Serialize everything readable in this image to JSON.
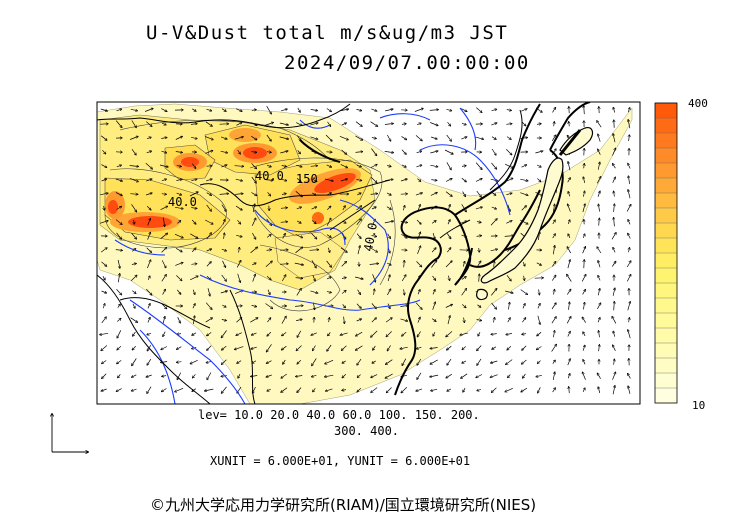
{
  "title": {
    "line1": "U-V&Dust total m/s&ug/m3 JST",
    "line2": "2024/09/07.00:00:00"
  },
  "contour_labels": [
    "40.0",
    "40.0",
    "150",
    "40.0"
  ],
  "levels": {
    "line1": "lev= 10.0 20.0 40.0 60.0 100. 150. 200.",
    "line2": "300. 400."
  },
  "units": "XUNIT = 6.000E+01, YUNIT = 6.000E+01",
  "colorbar": {
    "max_label": "400",
    "min_label": "10",
    "colors": [
      "#ff5a0a",
      "#ff6a14",
      "#ff7a1e",
      "#ff8a28",
      "#ff9a30",
      "#ffaa38",
      "#ffba40",
      "#ffca48",
      "#ffd850",
      "#ffe45a",
      "#ffee64",
      "#fff470",
      "#fff67e",
      "#fff88c",
      "#fffa9a",
      "#fffba8",
      "#fffcb6",
      "#fffdc4",
      "#fffed2",
      "#ffffe0"
    ]
  },
  "colors": {
    "dust_low": "#fff9c0",
    "dust_mid": "#ffe25a",
    "dust_high": "#ff9a30",
    "dust_max": "#ff4a10",
    "river": "#1a3cff",
    "coast": "#000000"
  },
  "copyright": "©九州大学応用力学研究所(RIAM)/国立環境研究所(NIES)"
}
